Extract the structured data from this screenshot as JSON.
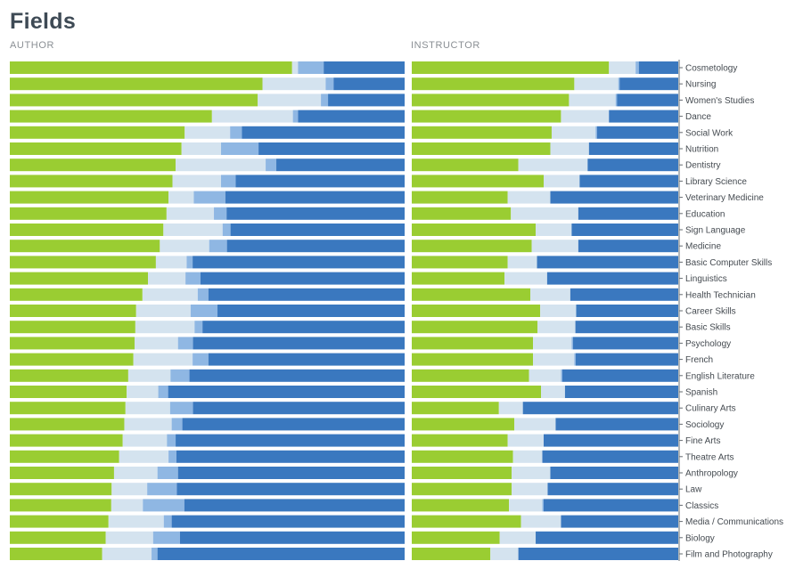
{
  "title": "Fields",
  "panels": [
    {
      "key": "author",
      "label": "AUTHOR"
    },
    {
      "key": "instructor",
      "label": "INSTRUCTOR"
    }
  ],
  "colors": [
    "#9acd32",
    "#d4e3ef",
    "#8fb7e3",
    "#3a78bf"
  ],
  "chart_data": {
    "type": "bar",
    "stacked": true,
    "orientation": "horizontal",
    "normalized": true,
    "xlim": [
      0,
      1
    ],
    "categories": [
      "Cosmetology",
      "Nursing",
      "Women's Studies",
      "Dance",
      "Social Work",
      "Nutrition",
      "Dentistry",
      "Library Science",
      "Veterinary Medicine",
      "Education",
      "Sign Language",
      "Medicine",
      "Basic Computer Skills",
      "Linguistics",
      "Health Technician",
      "Career Skills",
      "Basic Skills",
      "Psychology",
      "French",
      "English Literature",
      "Spanish",
      "Culinary Arts",
      "Sociology",
      "Fine Arts",
      "Theatre Arts",
      "Anthropology",
      "Law",
      "Classics",
      "Media / Communications",
      "Biology",
      "Film and Photography"
    ],
    "author": [
      [
        0.715,
        0.015,
        0.065,
        0.205
      ],
      [
        0.64,
        0.16,
        0.02,
        0.18
      ],
      [
        0.628,
        0.16,
        0.018,
        0.194
      ],
      [
        0.512,
        0.205,
        0.013,
        0.27
      ],
      [
        0.443,
        0.115,
        0.03,
        0.412
      ],
      [
        0.435,
        0.1,
        0.095,
        0.37
      ],
      [
        0.42,
        0.228,
        0.027,
        0.325
      ],
      [
        0.412,
        0.123,
        0.037,
        0.428
      ],
      [
        0.402,
        0.064,
        0.08,
        0.454
      ],
      [
        0.397,
        0.12,
        0.032,
        0.451
      ],
      [
        0.389,
        0.15,
        0.02,
        0.441
      ],
      [
        0.38,
        0.125,
        0.045,
        0.45
      ],
      [
        0.37,
        0.078,
        0.015,
        0.537
      ],
      [
        0.35,
        0.095,
        0.038,
        0.517
      ],
      [
        0.336,
        0.14,
        0.027,
        0.497
      ],
      [
        0.32,
        0.138,
        0.068,
        0.474
      ],
      [
        0.318,
        0.15,
        0.02,
        0.512
      ],
      [
        0.316,
        0.11,
        0.038,
        0.536
      ],
      [
        0.313,
        0.15,
        0.04,
        0.497
      ],
      [
        0.3,
        0.107,
        0.048,
        0.545
      ],
      [
        0.296,
        0.08,
        0.025,
        0.599
      ],
      [
        0.293,
        0.113,
        0.058,
        0.536
      ],
      [
        0.29,
        0.12,
        0.027,
        0.563
      ],
      [
        0.286,
        0.112,
        0.022,
        0.58
      ],
      [
        0.277,
        0.125,
        0.02,
        0.578
      ],
      [
        0.264,
        0.11,
        0.052,
        0.574
      ],
      [
        0.258,
        0.09,
        0.075,
        0.577
      ],
      [
        0.257,
        0.08,
        0.105,
        0.558
      ],
      [
        0.25,
        0.14,
        0.02,
        0.59
      ],
      [
        0.243,
        0.12,
        0.068,
        0.569
      ],
      [
        0.234,
        0.125,
        0.015,
        0.626
      ]
    ],
    "instructor": [
      [
        0.74,
        0.1,
        0.012,
        0.148
      ],
      [
        0.61,
        0.165,
        0.005,
        0.22
      ],
      [
        0.59,
        0.175,
        0.005,
        0.23
      ],
      [
        0.56,
        0.18,
        0.0,
        0.26
      ],
      [
        0.525,
        0.165,
        0.005,
        0.305
      ],
      [
        0.52,
        0.145,
        0.0,
        0.335
      ],
      [
        0.4,
        0.26,
        0.0,
        0.34
      ],
      [
        0.495,
        0.135,
        0.0,
        0.37
      ],
      [
        0.36,
        0.16,
        0.0,
        0.48
      ],
      [
        0.372,
        0.253,
        0.0,
        0.375
      ],
      [
        0.465,
        0.135,
        0.0,
        0.4
      ],
      [
        0.45,
        0.175,
        0.0,
        0.375
      ],
      [
        0.36,
        0.11,
        0.0,
        0.53
      ],
      [
        0.348,
        0.16,
        0.0,
        0.492
      ],
      [
        0.445,
        0.15,
        0.0,
        0.405
      ],
      [
        0.482,
        0.135,
        0.0,
        0.383
      ],
      [
        0.472,
        0.142,
        0.0,
        0.386
      ],
      [
        0.455,
        0.145,
        0.005,
        0.395
      ],
      [
        0.455,
        0.155,
        0.005,
        0.385
      ],
      [
        0.44,
        0.12,
        0.005,
        0.435
      ],
      [
        0.485,
        0.09,
        0.0,
        0.425
      ],
      [
        0.327,
        0.09,
        0.0,
        0.583
      ],
      [
        0.385,
        0.155,
        0.0,
        0.46
      ],
      [
        0.36,
        0.135,
        0.0,
        0.505
      ],
      [
        0.38,
        0.11,
        0.0,
        0.51
      ],
      [
        0.375,
        0.145,
        0.0,
        0.48
      ],
      [
        0.375,
        0.135,
        0.0,
        0.49
      ],
      [
        0.365,
        0.125,
        0.005,
        0.505
      ],
      [
        0.41,
        0.15,
        0.0,
        0.44
      ],
      [
        0.33,
        0.135,
        0.0,
        0.535
      ],
      [
        0.295,
        0.105,
        0.0,
        0.6
      ]
    ]
  }
}
